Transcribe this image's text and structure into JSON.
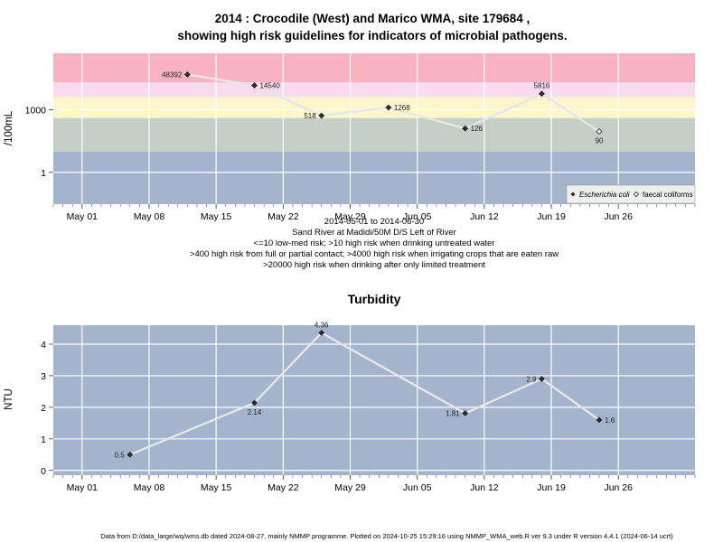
{
  "colors": {
    "band_blue": "#a3b4cc",
    "band_green": "#c5cfc5",
    "band_yellow": "#fdf6cb",
    "band_pink": "#f8dcee",
    "band_red": "#f8b2c1",
    "grid": "#ffffff",
    "line": "#e6e6e6",
    "turbidity_bg": "#a3b4cc"
  },
  "chart_data": [
    {
      "type": "line",
      "title_line1": "2014 : Crocodile (West) and Marico WMA, site 179684 ,",
      "title_line2": "showing high risk guidelines for indicators of microbial pathogens.",
      "ylabel": "/100mL",
      "yscale": "log",
      "ylim": [
        0.03,
        500000
      ],
      "y_ticks": [
        {
          "value": 1,
          "label": "1"
        },
        {
          "value": 1000,
          "label": "1000"
        }
      ],
      "x_ticks": [
        {
          "date": "2014-05-01",
          "label": "May 01"
        },
        {
          "date": "2014-05-08",
          "label": "May 08"
        },
        {
          "date": "2014-05-15",
          "label": "May 15"
        },
        {
          "date": "2014-05-22",
          "label": "May 22"
        },
        {
          "date": "2014-05-29",
          "label": "May 29"
        },
        {
          "date": "2014-06-05",
          "label": "Jun 05"
        },
        {
          "date": "2014-06-12",
          "label": "Jun 12"
        },
        {
          "date": "2014-06-19",
          "label": "Jun 19"
        },
        {
          "date": "2014-06-26",
          "label": "Jun 26"
        }
      ],
      "xlim": [
        "2014-04-28",
        "2014-07-04"
      ],
      "bands": [
        {
          "from": 0.03,
          "to": 10,
          "color": "band_blue"
        },
        {
          "from": 10,
          "to": 400,
          "color": "band_green"
        },
        {
          "from": 400,
          "to": 4000,
          "color": "band_yellow"
        },
        {
          "from": 4000,
          "to": 20000,
          "color": "band_pink"
        },
        {
          "from": 20000,
          "to": 500000,
          "color": "band_red"
        }
      ],
      "series": [
        {
          "name": "Escherichia coli",
          "marker": "filled-diamond",
          "points": [
            {
              "date": "2014-05-12",
              "value": 48392,
              "label": "48392",
              "label_side": "left"
            },
            {
              "date": "2014-05-19",
              "value": 14540,
              "label": "14540",
              "label_side": "right"
            },
            {
              "date": "2014-05-26",
              "value": 518,
              "label": "518",
              "label_side": "left"
            },
            {
              "date": "2014-06-02",
              "value": 1268,
              "label": "1268",
              "label_side": "right"
            },
            {
              "date": "2014-06-10",
              "value": 126,
              "label": "126",
              "label_side": "right"
            },
            {
              "date": "2014-06-18",
              "value": 5816,
              "label": "5816",
              "label_side": "above"
            }
          ]
        },
        {
          "name": "faecal coliforms",
          "marker": "open-diamond",
          "points": [
            {
              "date": "2014-06-24",
              "value": 90,
              "label": "90",
              "label_side": "below"
            }
          ]
        }
      ],
      "legend_position": "bottom-right",
      "notes": [
        "2014-05-01 to 2014-06-30",
        "Sand River at Madidi/50M D/S Left of River",
        "<=10 low-med risk; >10 high risk when drinking untreated water",
        ">400 high risk from full or partial contact; >4000 high risk when irrigating crops that are eaten raw",
        ">20000 high risk when drinking after only limited treatment"
      ]
    },
    {
      "type": "line",
      "title": "Turbidity",
      "ylabel": "NTU",
      "ylim": [
        -0.15,
        4.6
      ],
      "y_ticks": [
        {
          "value": 0,
          "label": "0"
        },
        {
          "value": 1,
          "label": "1"
        },
        {
          "value": 2,
          "label": "2"
        },
        {
          "value": 3,
          "label": "3"
        },
        {
          "value": 4,
          "label": "4"
        }
      ],
      "x_ticks": [
        {
          "date": "2014-05-01",
          "label": "May 01"
        },
        {
          "date": "2014-05-08",
          "label": "May 08"
        },
        {
          "date": "2014-05-15",
          "label": "May 15"
        },
        {
          "date": "2014-05-22",
          "label": "May 22"
        },
        {
          "date": "2014-05-29",
          "label": "May 29"
        },
        {
          "date": "2014-06-05",
          "label": "Jun 05"
        },
        {
          "date": "2014-06-12",
          "label": "Jun 12"
        },
        {
          "date": "2014-06-19",
          "label": "Jun 19"
        },
        {
          "date": "2014-06-26",
          "label": "Jun 26"
        }
      ],
      "xlim": [
        "2014-04-28",
        "2014-07-04"
      ],
      "series": [
        {
          "marker": "filled-diamond",
          "points": [
            {
              "date": "2014-05-06",
              "value": 0.5,
              "label": "0.5",
              "label_side": "left"
            },
            {
              "date": "2014-05-19",
              "value": 2.14,
              "label": "2.14",
              "label_side": "below"
            },
            {
              "date": "2014-05-26",
              "value": 4.36,
              "label": "4.36",
              "label_side": "above"
            },
            {
              "date": "2014-06-10",
              "value": 1.81,
              "label": "1.81",
              "label_side": "left"
            },
            {
              "date": "2014-06-18",
              "value": 2.9,
              "label": "2.9",
              "label_side": "left"
            },
            {
              "date": "2014-06-24",
              "value": 1.6,
              "label": "1.6",
              "label_side": "right"
            }
          ]
        }
      ]
    }
  ],
  "footer": "Data from D:/data_large/wq/wms.db dated 2024-08-27, mainly NMMP programme. Plotted on 2024-10-25 15:29:16 using NMMP_WMA_web.R ver 9.3 under R version 4.4.1 (2024-06-14 ucrt)"
}
